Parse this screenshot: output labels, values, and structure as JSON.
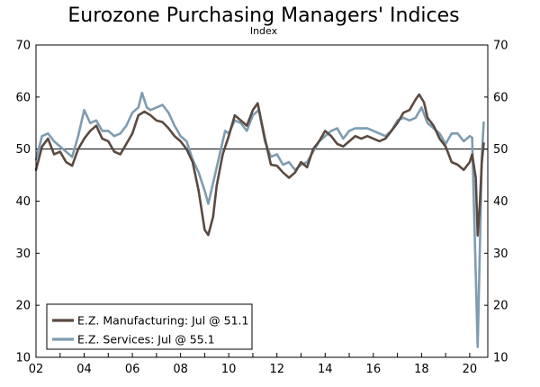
{
  "chart_data": {
    "type": "line",
    "title": "Eurozone Purchasing Managers' Indices",
    "subtitle": "Index",
    "xlabel": "",
    "ylabel": "",
    "xlim": [
      2002.0,
      2020.75
    ],
    "ylim": [
      10,
      70
    ],
    "yticks": [
      10,
      20,
      30,
      40,
      50,
      60,
      70
    ],
    "y_tick_labels": [
      "10",
      "20",
      "30",
      "40",
      "50",
      "60",
      "70"
    ],
    "x_ticks": [
      {
        "year": 2002,
        "label": "02"
      },
      {
        "year": 2004,
        "label": "04"
      },
      {
        "year": 2006,
        "label": "06"
      },
      {
        "year": 2008,
        "label": "08"
      },
      {
        "year": 2010,
        "label": "10"
      },
      {
        "year": 2012,
        "label": "12"
      },
      {
        "year": 2014,
        "label": "14"
      },
      {
        "year": 2016,
        "label": "16"
      },
      {
        "year": 2018,
        "label": "18"
      },
      {
        "year": 2020,
        "label": "20"
      }
    ],
    "reference_line": 50,
    "legend_position": "bottom-left",
    "series": [
      {
        "name": "E.Z. Manufacturing: Jul @ 51.1",
        "color": "#5a4a40",
        "points": [
          [
            2002.0,
            46.0
          ],
          [
            2002.25,
            50.5
          ],
          [
            2002.5,
            52.0
          ],
          [
            2002.75,
            49.0
          ],
          [
            2003.0,
            49.5
          ],
          [
            2003.25,
            47.5
          ],
          [
            2003.5,
            46.8
          ],
          [
            2003.75,
            50.0
          ],
          [
            2004.0,
            52.0
          ],
          [
            2004.25,
            53.5
          ],
          [
            2004.5,
            54.5
          ],
          [
            2004.75,
            52.0
          ],
          [
            2005.0,
            51.5
          ],
          [
            2005.25,
            49.5
          ],
          [
            2005.5,
            49.0
          ],
          [
            2005.75,
            51.0
          ],
          [
            2006.0,
            53.0
          ],
          [
            2006.25,
            56.5
          ],
          [
            2006.5,
            57.2
          ],
          [
            2006.75,
            56.5
          ],
          [
            2007.0,
            55.5
          ],
          [
            2007.25,
            55.2
          ],
          [
            2007.5,
            54.0
          ],
          [
            2007.75,
            52.5
          ],
          [
            2008.0,
            51.5
          ],
          [
            2008.25,
            50.0
          ],
          [
            2008.5,
            47.5
          ],
          [
            2008.75,
            42.0
          ],
          [
            2009.0,
            34.5
          ],
          [
            2009.15,
            33.5
          ],
          [
            2009.35,
            37.0
          ],
          [
            2009.5,
            43.0
          ],
          [
            2009.75,
            49.0
          ],
          [
            2010.0,
            52.5
          ],
          [
            2010.25,
            56.5
          ],
          [
            2010.5,
            55.5
          ],
          [
            2010.75,
            54.5
          ],
          [
            2011.0,
            57.5
          ],
          [
            2011.2,
            58.8
          ],
          [
            2011.5,
            52.0
          ],
          [
            2011.75,
            47.0
          ],
          [
            2012.0,
            46.8
          ],
          [
            2012.25,
            45.5
          ],
          [
            2012.5,
            44.5
          ],
          [
            2012.75,
            45.5
          ],
          [
            2013.0,
            47.5
          ],
          [
            2013.25,
            46.5
          ],
          [
            2013.5,
            50.0
          ],
          [
            2013.75,
            51.5
          ],
          [
            2014.0,
            53.5
          ],
          [
            2014.25,
            52.5
          ],
          [
            2014.5,
            51.0
          ],
          [
            2014.75,
            50.5
          ],
          [
            2015.0,
            51.5
          ],
          [
            2015.25,
            52.5
          ],
          [
            2015.5,
            52.0
          ],
          [
            2015.75,
            52.5
          ],
          [
            2016.0,
            52.0
          ],
          [
            2016.25,
            51.5
          ],
          [
            2016.5,
            52.0
          ],
          [
            2016.75,
            53.5
          ],
          [
            2017.0,
            55.0
          ],
          [
            2017.25,
            57.0
          ],
          [
            2017.5,
            57.5
          ],
          [
            2017.75,
            59.5
          ],
          [
            2017.9,
            60.5
          ],
          [
            2018.1,
            59.0
          ],
          [
            2018.25,
            56.0
          ],
          [
            2018.5,
            54.5
          ],
          [
            2018.75,
            52.0
          ],
          [
            2019.0,
            50.5
          ],
          [
            2019.25,
            47.5
          ],
          [
            2019.5,
            47.0
          ],
          [
            2019.75,
            46.0
          ],
          [
            2020.0,
            47.5
          ],
          [
            2020.1,
            49.0
          ],
          [
            2020.25,
            44.5
          ],
          [
            2020.33,
            33.4
          ],
          [
            2020.42,
            39.4
          ],
          [
            2020.5,
            47.4
          ],
          [
            2020.58,
            51.1
          ]
        ]
      },
      {
        "name": "E.Z. Services: Jul @ 55.1",
        "color": "#7f9cb0",
        "points": [
          [
            2002.0,
            48.0
          ],
          [
            2002.25,
            52.5
          ],
          [
            2002.5,
            53.0
          ],
          [
            2002.75,
            51.5
          ],
          [
            2003.0,
            50.5
          ],
          [
            2003.25,
            49.5
          ],
          [
            2003.5,
            48.5
          ],
          [
            2003.75,
            52.5
          ],
          [
            2004.0,
            57.5
          ],
          [
            2004.25,
            55.0
          ],
          [
            2004.5,
            55.5
          ],
          [
            2004.75,
            53.5
          ],
          [
            2005.0,
            53.5
          ],
          [
            2005.25,
            52.5
          ],
          [
            2005.5,
            53.0
          ],
          [
            2005.75,
            54.5
          ],
          [
            2006.0,
            57.0
          ],
          [
            2006.25,
            58.0
          ],
          [
            2006.4,
            60.8
          ],
          [
            2006.6,
            58.0
          ],
          [
            2006.75,
            57.5
          ],
          [
            2007.0,
            58.0
          ],
          [
            2007.25,
            58.5
          ],
          [
            2007.5,
            57.0
          ],
          [
            2007.75,
            54.5
          ],
          [
            2008.0,
            52.5
          ],
          [
            2008.25,
            51.5
          ],
          [
            2008.5,
            48.0
          ],
          [
            2008.75,
            45.5
          ],
          [
            2009.0,
            42.0
          ],
          [
            2009.15,
            39.5
          ],
          [
            2009.35,
            43.5
          ],
          [
            2009.6,
            48.5
          ],
          [
            2009.85,
            53.5
          ],
          [
            2010.0,
            53.0
          ],
          [
            2010.25,
            55.5
          ],
          [
            2010.5,
            55.0
          ],
          [
            2010.75,
            53.5
          ],
          [
            2011.0,
            56.5
          ],
          [
            2011.25,
            57.5
          ],
          [
            2011.5,
            51.5
          ],
          [
            2011.75,
            48.5
          ],
          [
            2012.0,
            49.0
          ],
          [
            2012.25,
            47.0
          ],
          [
            2012.5,
            47.5
          ],
          [
            2012.75,
            46.0
          ],
          [
            2013.0,
            47.0
          ],
          [
            2013.25,
            47.5
          ],
          [
            2013.5,
            49.5
          ],
          [
            2013.75,
            51.5
          ],
          [
            2014.0,
            52.5
          ],
          [
            2014.25,
            53.5
          ],
          [
            2014.5,
            54.0
          ],
          [
            2014.75,
            52.0
          ],
          [
            2015.0,
            53.5
          ],
          [
            2015.25,
            54.0
          ],
          [
            2015.5,
            54.0
          ],
          [
            2015.75,
            54.0
          ],
          [
            2016.0,
            53.5
          ],
          [
            2016.25,
            53.0
          ],
          [
            2016.5,
            52.5
          ],
          [
            2016.75,
            53.5
          ],
          [
            2017.0,
            55.5
          ],
          [
            2017.25,
            56.0
          ],
          [
            2017.5,
            55.5
          ],
          [
            2017.75,
            56.0
          ],
          [
            2018.0,
            58.0
          ],
          [
            2018.25,
            55.0
          ],
          [
            2018.5,
            54.0
          ],
          [
            2018.75,
            53.0
          ],
          [
            2019.0,
            51.0
          ],
          [
            2019.25,
            53.0
          ],
          [
            2019.5,
            53.0
          ],
          [
            2019.75,
            51.5
          ],
          [
            2020.0,
            52.5
          ],
          [
            2020.1,
            52.2
          ],
          [
            2020.25,
            26.0
          ],
          [
            2020.33,
            12.0
          ],
          [
            2020.42,
            30.5
          ],
          [
            2020.5,
            48.3
          ],
          [
            2020.58,
            55.1
          ]
        ]
      }
    ]
  }
}
